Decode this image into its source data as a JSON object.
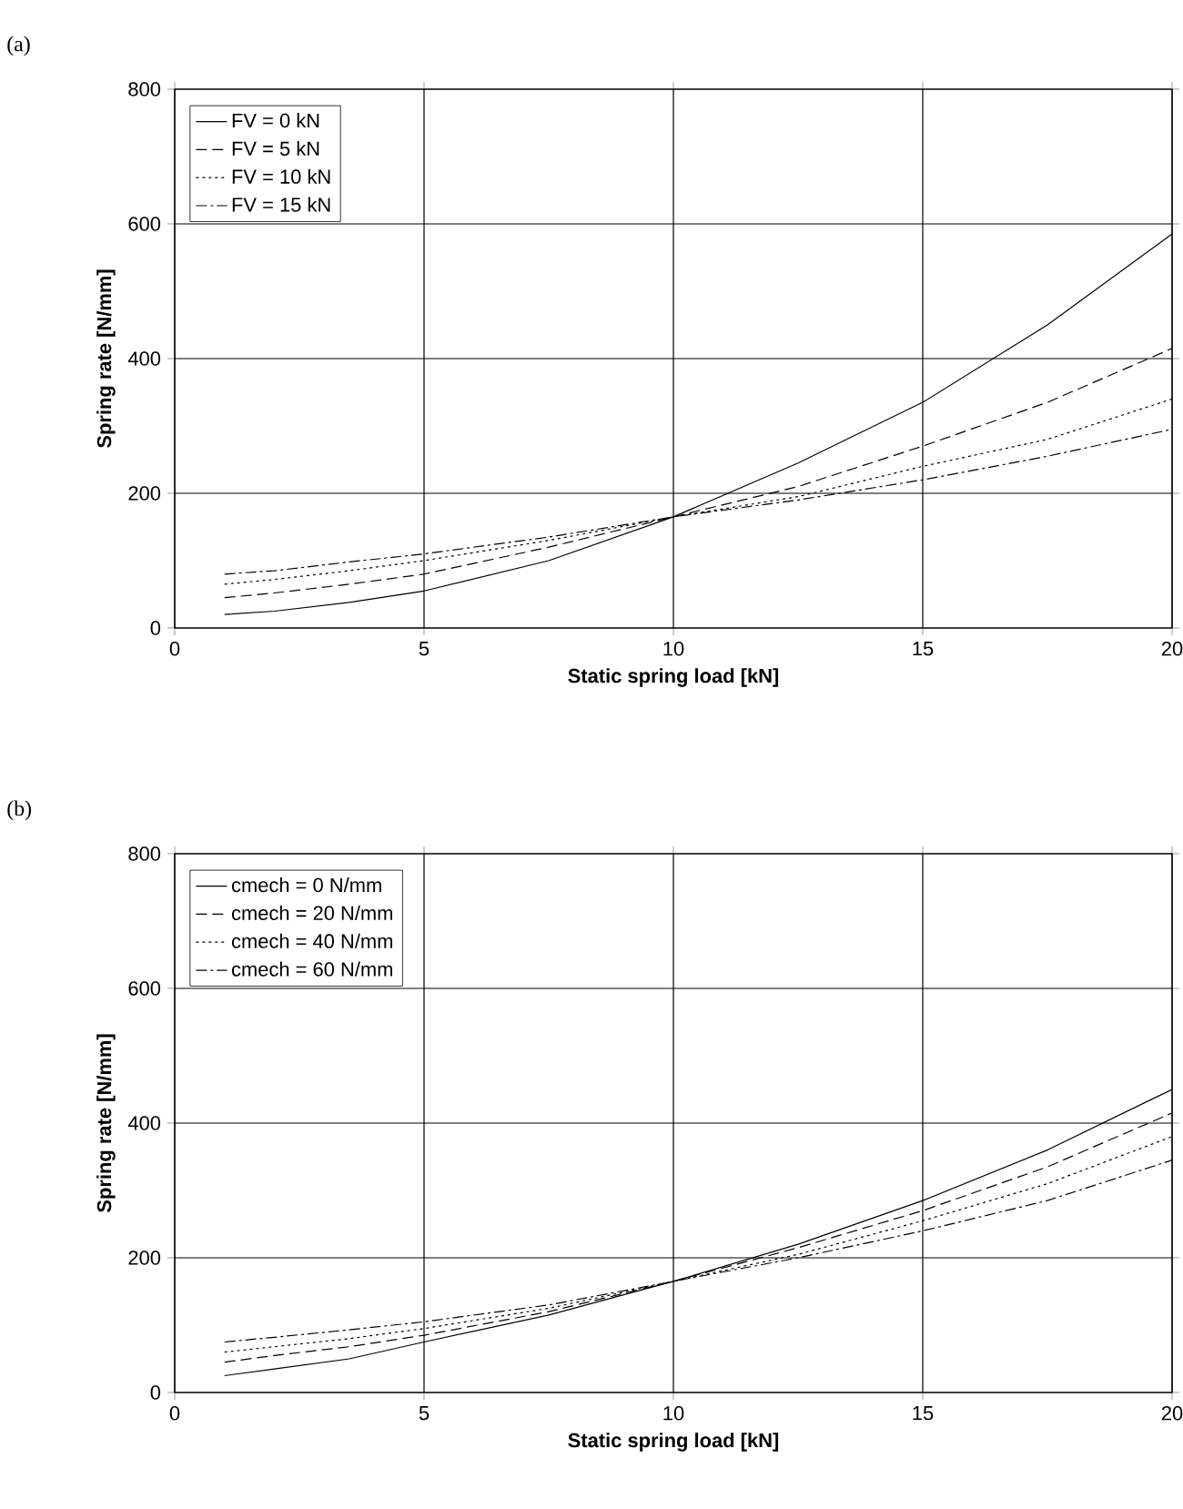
{
  "chart_data": [
    {
      "type": "line",
      "title": "(a)",
      "xlabel": "Static spring load [kN]",
      "ylabel": "Spring rate [N/mm]",
      "x": [
        1,
        2,
        3.5,
        5,
        7.5,
        10,
        12.5,
        15,
        17.5,
        20
      ],
      "series": [
        {
          "name": "FV = 0 kN",
          "color": "#000000",
          "line_style": "solid",
          "values": [
            20,
            25,
            38,
            55,
            100,
            165,
            245,
            335,
            450,
            585
          ]
        },
        {
          "name": "FV = 5 kN",
          "color": "#000000",
          "line_style": "dashed",
          "values": [
            45,
            52,
            65,
            80,
            120,
            165,
            210,
            270,
            335,
            415
          ]
        },
        {
          "name": "FV = 10 kN",
          "color": "#000000",
          "line_style": "dotted",
          "values": [
            65,
            72,
            85,
            100,
            130,
            165,
            195,
            240,
            280,
            340
          ]
        },
        {
          "name": "FV = 15 kN",
          "color": "#000000",
          "line_style": "dashdot",
          "values": [
            80,
            85,
            98,
            110,
            135,
            165,
            190,
            220,
            255,
            295
          ]
        }
      ],
      "xlim": [
        0,
        20
      ],
      "xticks": [
        0,
        5,
        10,
        15,
        20
      ],
      "ylim": [
        0,
        800
      ],
      "yticks": [
        0,
        200,
        400,
        600,
        800
      ],
      "grid": true,
      "legend": "top left"
    },
    {
      "type": "line",
      "title": "(b)",
      "xlabel": "Static spring load [kN]",
      "ylabel": "Spring rate [N/mm]",
      "x": [
        1,
        2,
        3.5,
        5,
        7.5,
        10,
        12.5,
        15,
        17.5,
        20
      ],
      "series": [
        {
          "name": "cmech = 0 N/mm",
          "color": "#000000",
          "line_style": "solid",
          "values": [
            25,
            35,
            50,
            75,
            115,
            165,
            220,
            285,
            360,
            450
          ]
        },
        {
          "name": "cmech = 20 N/mm",
          "color": "#000000",
          "line_style": "dashed",
          "values": [
            45,
            55,
            68,
            85,
            120,
            165,
            215,
            270,
            335,
            415
          ]
        },
        {
          "name": "cmech = 40 N/mm",
          "color": "#000000",
          "line_style": "dotted",
          "values": [
            60,
            68,
            80,
            95,
            125,
            165,
            205,
            255,
            310,
            380
          ]
        },
        {
          "name": "cmech = 60 N/mm",
          "color": "#000000",
          "line_style": "dashdot",
          "values": [
            75,
            82,
            93,
            105,
            130,
            165,
            200,
            240,
            285,
            345
          ]
        }
      ],
      "xlim": [
        0,
        20
      ],
      "xticks": [
        0,
        5,
        10,
        15,
        20
      ],
      "ylim": [
        0,
        800
      ],
      "yticks": [
        0,
        200,
        400,
        600,
        800
      ],
      "grid": true,
      "legend": "top left"
    }
  ]
}
